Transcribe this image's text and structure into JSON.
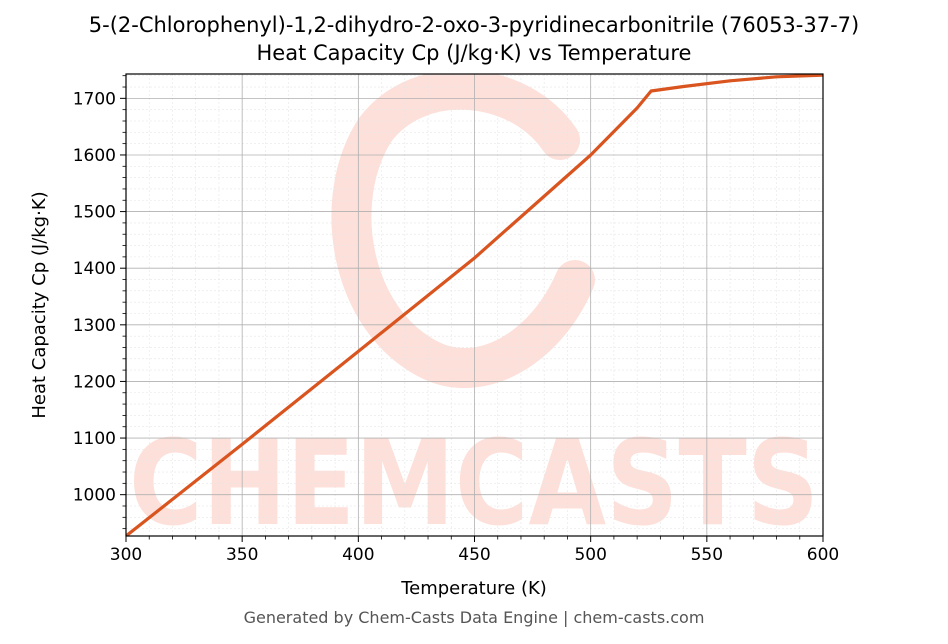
{
  "footer": "Generated by Chem-Casts Data Engine | chem-casts.com",
  "watermark": "CHEMCASTS",
  "chart_data": {
    "type": "line",
    "title": "5-(2-Chlorophenyl)-1,2-dihydro-2-oxo-3-pyridinecarbonitrile (76053-37-7)",
    "subtitle": "Heat Capacity Cp (J/kg·K) vs Temperature",
    "xlabel": "Temperature (K)",
    "ylabel": "Heat Capacity Cp (J/kg·K)",
    "xlim": [
      300,
      600
    ],
    "ylim": [
      927,
      1743
    ],
    "xticks": [
      300,
      350,
      400,
      450,
      500,
      550,
      600
    ],
    "yticks": [
      1000,
      1100,
      1200,
      1300,
      1400,
      1500,
      1600,
      1700
    ],
    "grid": true,
    "line_color": "#d9541e",
    "series": [
      {
        "x": [
          300,
          350,
          400,
          450,
          500,
          520,
          526,
          540,
          560,
          580,
          600
        ],
        "values": [
          927,
          1089,
          1253,
          1418,
          1600,
          1683,
          1713,
          1721,
          1731,
          1738,
          1741
        ]
      }
    ]
  }
}
